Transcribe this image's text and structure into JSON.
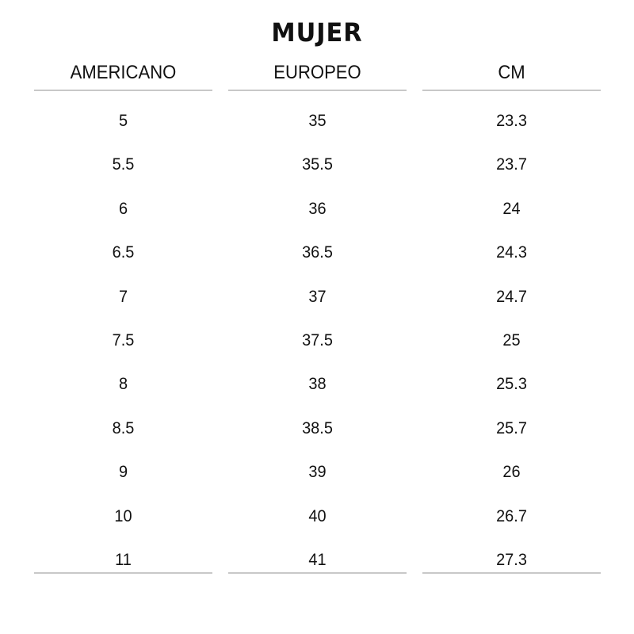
{
  "title": "MUJER",
  "columns": [
    "AMERICANO",
    "EUROPEO",
    "CM"
  ],
  "rows": [
    [
      "5",
      "35",
      "23.3"
    ],
    [
      "5.5",
      "35.5",
      "23.7"
    ],
    [
      "6",
      "36",
      "24"
    ],
    [
      "6.5",
      "36.5",
      "24.3"
    ],
    [
      "7",
      "37",
      "24.7"
    ],
    [
      "7.5",
      "37.5",
      "25"
    ],
    [
      "8",
      "38",
      "25.3"
    ],
    [
      "8.5",
      "38.5",
      "25.7"
    ],
    [
      "9",
      "39",
      "26"
    ],
    [
      "10",
      "40",
      "26.7"
    ],
    [
      "11",
      "41",
      "27.3"
    ]
  ]
}
